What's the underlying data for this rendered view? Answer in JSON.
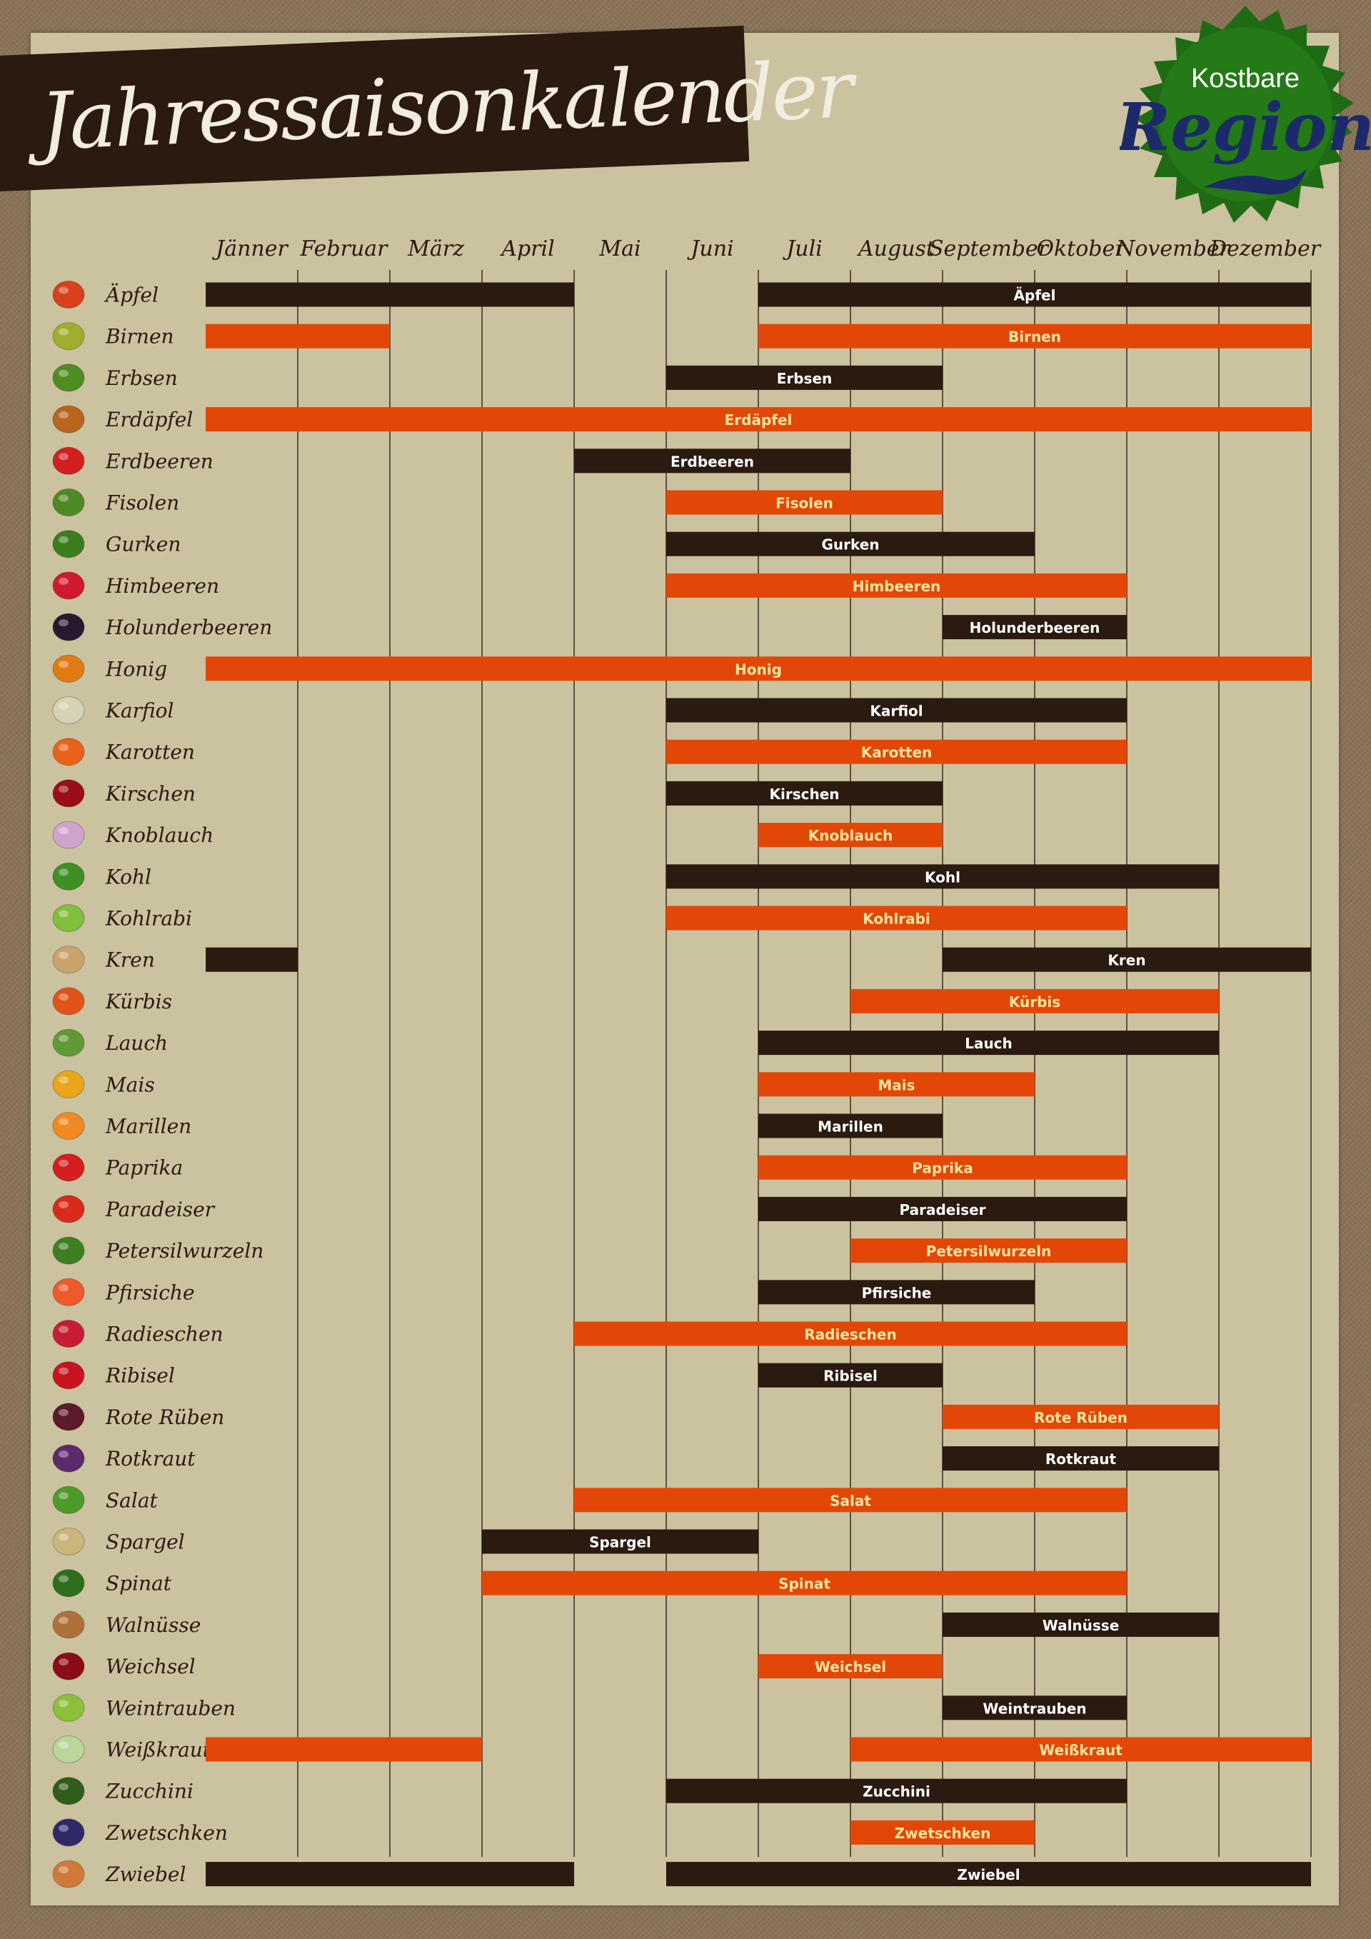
{
  "header": {
    "title": "Jahressaisonkalender"
  },
  "logo": {
    "top_text": "Kostbare",
    "main_text": "Region"
  },
  "colors": {
    "dark": "#2a1a10",
    "orange": "#e34707",
    "label_on_dark": "#ffffff",
    "label_on_orange": "#ffe6a0"
  },
  "chart_data": {
    "type": "gantt",
    "title": "Jahressaisonkalender",
    "months": [
      "Jänner",
      "Februar",
      "März",
      "April",
      "Mai",
      "Juni",
      "Juli",
      "August",
      "September",
      "Oktober",
      "November",
      "Dezember"
    ],
    "note": "start/end are month indices 1-12 (inclusive). Some items have two season segments.",
    "rows": [
      {
        "name": "Äpfel",
        "bar_label": "Äpfel",
        "color": "dark",
        "icon": "apple-icon",
        "segments": [
          [
            1,
            4
          ],
          [
            7,
            12
          ]
        ]
      },
      {
        "name": "Birnen",
        "bar_label": "Birnen",
        "color": "orange",
        "icon": "pear-icon",
        "segments": [
          [
            1,
            2
          ],
          [
            7,
            12
          ]
        ]
      },
      {
        "name": "Erbsen",
        "bar_label": "Erbsen",
        "color": "dark",
        "icon": "peas-icon",
        "segments": [
          [
            6,
            8
          ]
        ]
      },
      {
        "name": "Erdäpfel",
        "bar_label": "Erdäpfel",
        "color": "orange",
        "icon": "potato-icon",
        "segments": [
          [
            1,
            12
          ]
        ]
      },
      {
        "name": "Erdbeeren",
        "bar_label": "Erdbeeren",
        "color": "dark",
        "icon": "strawberry-icon",
        "segments": [
          [
            5,
            7
          ]
        ]
      },
      {
        "name": "Fisolen",
        "bar_label": "Fisolen",
        "color": "orange",
        "icon": "green-bean-icon",
        "segments": [
          [
            6,
            8
          ]
        ]
      },
      {
        "name": "Gurken",
        "bar_label": "Gurken",
        "color": "dark",
        "icon": "cucumber-icon",
        "segments": [
          [
            6,
            9
          ]
        ]
      },
      {
        "name": "Himbeeren",
        "bar_label": "Himbeeren",
        "color": "orange",
        "icon": "raspberry-icon",
        "segments": [
          [
            6,
            10
          ]
        ]
      },
      {
        "name": "Holunderbeeren",
        "bar_label": "Holunderbeeren",
        "color": "dark",
        "icon": "elderberry-icon",
        "segments": [
          [
            9,
            10
          ]
        ]
      },
      {
        "name": "Honig",
        "bar_label": "Honig",
        "color": "orange",
        "icon": "honey-jar-icon",
        "segments": [
          [
            1,
            12
          ]
        ]
      },
      {
        "name": "Karfiol",
        "bar_label": "Karfiol",
        "color": "dark",
        "icon": "cauliflower-icon",
        "segments": [
          [
            6,
            10
          ]
        ]
      },
      {
        "name": "Karotten",
        "bar_label": "Karotten",
        "color": "orange",
        "icon": "carrot-icon",
        "segments": [
          [
            6,
            10
          ]
        ]
      },
      {
        "name": "Kirschen",
        "bar_label": "Kirschen",
        "color": "dark",
        "icon": "cherry-icon",
        "segments": [
          [
            6,
            8
          ]
        ]
      },
      {
        "name": "Knoblauch",
        "bar_label": "Knoblauch",
        "color": "orange",
        "icon": "garlic-icon",
        "segments": [
          [
            7,
            8
          ]
        ]
      },
      {
        "name": "Kohl",
        "bar_label": "Kohl",
        "color": "dark",
        "icon": "cabbage-icon",
        "segments": [
          [
            6,
            11
          ]
        ]
      },
      {
        "name": "Kohlrabi",
        "bar_label": "Kohlrabi",
        "color": "orange",
        "icon": "kohlrabi-icon",
        "segments": [
          [
            6,
            10
          ]
        ]
      },
      {
        "name": "Kren",
        "bar_label": "Kren",
        "color": "dark",
        "icon": "horseradish-icon",
        "segments": [
          [
            1,
            1
          ],
          [
            9,
            12
          ]
        ]
      },
      {
        "name": "Kürbis",
        "bar_label": "Kürbis",
        "color": "orange",
        "icon": "pumpkin-icon",
        "segments": [
          [
            8,
            11
          ]
        ]
      },
      {
        "name": "Lauch",
        "bar_label": "Lauch",
        "color": "dark",
        "icon": "leek-icon",
        "segments": [
          [
            7,
            11
          ]
        ]
      },
      {
        "name": "Mais",
        "bar_label": "Mais",
        "color": "orange",
        "icon": "corn-icon",
        "segments": [
          [
            7,
            9
          ]
        ]
      },
      {
        "name": "Marillen",
        "bar_label": "Marillen",
        "color": "dark",
        "icon": "apricot-icon",
        "segments": [
          [
            7,
            8
          ]
        ]
      },
      {
        "name": "Paprika",
        "bar_label": "Paprika",
        "color": "orange",
        "icon": "pepper-icon",
        "segments": [
          [
            7,
            10
          ]
        ]
      },
      {
        "name": "Paradeiser",
        "bar_label": "Paradeiser",
        "color": "dark",
        "icon": "tomato-icon",
        "segments": [
          [
            7,
            10
          ]
        ]
      },
      {
        "name": "Petersilwurzeln",
        "bar_label": "Petersilwurzeln",
        "color": "orange",
        "icon": "parsley-root-icon",
        "segments": [
          [
            8,
            10
          ]
        ]
      },
      {
        "name": "Pfirsiche",
        "bar_label": "Pfirsiche",
        "color": "dark",
        "icon": "peach-icon",
        "segments": [
          [
            7,
            9
          ]
        ]
      },
      {
        "name": "Radieschen",
        "bar_label": "Radieschen",
        "color": "orange",
        "icon": "radish-icon",
        "segments": [
          [
            5,
            10
          ]
        ]
      },
      {
        "name": "Ribisel",
        "bar_label": "Ribisel",
        "color": "dark",
        "icon": "currant-icon",
        "segments": [
          [
            7,
            8
          ]
        ]
      },
      {
        "name": "Rote Rüben",
        "bar_label": "Rote Rüben",
        "color": "orange",
        "icon": "beetroot-icon",
        "segments": [
          [
            9,
            11
          ]
        ]
      },
      {
        "name": "Rotkraut",
        "bar_label": "Rotkraut",
        "color": "dark",
        "icon": "red-cabbage-icon",
        "segments": [
          [
            9,
            11
          ]
        ]
      },
      {
        "name": "Salat",
        "bar_label": "Salat",
        "color": "orange",
        "icon": "lettuce-icon",
        "segments": [
          [
            5,
            10
          ]
        ]
      },
      {
        "name": "Spargel",
        "bar_label": "Spargel",
        "color": "dark",
        "icon": "asparagus-icon",
        "segments": [
          [
            4,
            6
          ]
        ]
      },
      {
        "name": "Spinat",
        "bar_label": "Spinat",
        "color": "orange",
        "icon": "spinach-icon",
        "segments": [
          [
            4,
            10
          ]
        ]
      },
      {
        "name": "Walnüsse",
        "bar_label": "Walnüsse",
        "color": "dark",
        "icon": "walnut-icon",
        "segments": [
          [
            9,
            11
          ]
        ]
      },
      {
        "name": "Weichsel",
        "bar_label": "Weichsel",
        "color": "orange",
        "icon": "sour-cherry-icon",
        "segments": [
          [
            7,
            8
          ]
        ]
      },
      {
        "name": "Weintrauben",
        "bar_label": "Weintrauben",
        "color": "dark",
        "icon": "grapes-icon",
        "segments": [
          [
            9,
            10
          ]
        ]
      },
      {
        "name": "Weißkraut",
        "bar_label": "Weißkraut",
        "color": "orange",
        "icon": "white-cabbage-icon",
        "segments": [
          [
            1,
            3
          ],
          [
            8,
            12
          ]
        ]
      },
      {
        "name": "Zucchini",
        "bar_label": "Zucchini",
        "color": "dark",
        "icon": "zucchini-icon",
        "segments": [
          [
            6,
            10
          ]
        ]
      },
      {
        "name": "Zwetschken",
        "bar_label": "Zwetschken",
        "color": "orange",
        "icon": "plum-icon",
        "segments": [
          [
            8,
            9
          ]
        ]
      },
      {
        "name": "Zwiebel",
        "bar_label": "Zwiebel",
        "color": "dark",
        "icon": "onion-icon",
        "segments": [
          [
            1,
            4
          ],
          [
            6,
            12
          ]
        ]
      }
    ]
  }
}
